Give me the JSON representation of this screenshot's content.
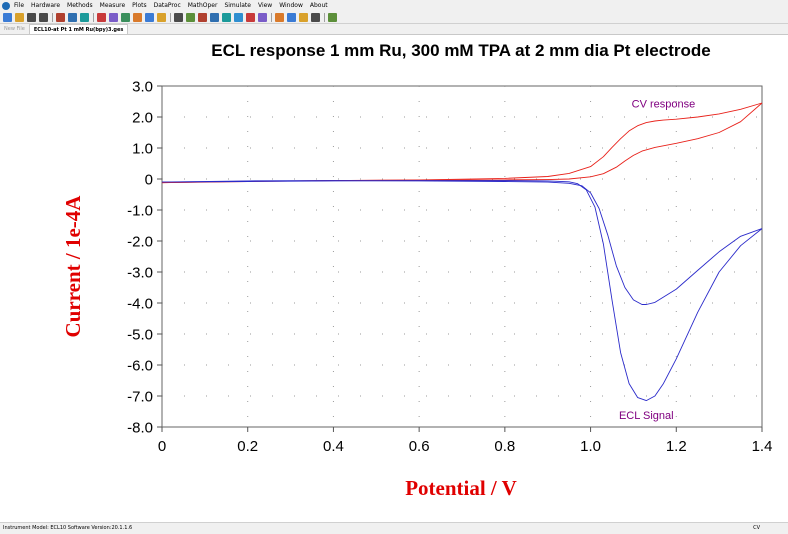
{
  "menu": [
    "File",
    "Hardware",
    "Methods",
    "Measure",
    "Plots",
    "DataProc",
    "MathOper",
    "Simulate",
    "View",
    "Window",
    "About"
  ],
  "toolbar_icons": [
    "new-file-icon",
    "open-folder-icon",
    "save-icon",
    "print-icon",
    "separator",
    "text-icon",
    "report-icon",
    "display-icon",
    "separator",
    "run-icon",
    "pause-icon",
    "stop-icon",
    "reverse-icon",
    "cell-icon",
    "rotate-icon",
    "separator",
    "graph-options-icon",
    "zoom-icon",
    "tools-icon",
    "overlay-icon",
    "add-icon",
    "color-icon",
    "plot-icon",
    "window-icon",
    "separator",
    "smooth-icon",
    "peak-icon",
    "derivative-icon",
    "fit-icon",
    "separator",
    "notebook-icon"
  ],
  "tabs": [
    {
      "label": "New File",
      "active": false
    },
    {
      "label": "ECL10-at Pt 1 mM Ru(bpy)3.ges",
      "active": true
    }
  ],
  "status": {
    "left": "Instrument Model: ECL10  Software Version:20.1.1.6",
    "right": "CV"
  },
  "colors": {
    "cv": "#e8211a",
    "ecl": "#2a2aca",
    "axis_title": "#e00000",
    "annotation": "#800080"
  },
  "chart_data": {
    "type": "line",
    "title": "ECL response 1 mm Ru, 300 mM TPA at 2 mm dia Pt electrode",
    "xlabel": "Potential / V",
    "ylabel": "Current / 1e-4A",
    "xlim": [
      0,
      1.4
    ],
    "ylim": [
      -8.0,
      3.0
    ],
    "xticks": [
      "0",
      "0.2",
      "0.4",
      "0.6",
      "0.8",
      "1.0",
      "1.2",
      "1.4"
    ],
    "yticks": [
      "3.0",
      "2.0",
      "1.0",
      "0",
      "-1.0",
      "-2.0",
      "-3.0",
      "-4.0",
      "-5.0",
      "-6.0",
      "-7.0",
      "-8.0"
    ],
    "grid": "dotted",
    "annotations": [
      {
        "text": "CV response",
        "x": 1.17,
        "y": 2.4
      },
      {
        "text": "ECL Signal",
        "x": 1.13,
        "y": -7.65
      }
    ],
    "series": [
      {
        "key": "cv_forward",
        "color": "#e8211a",
        "x": [
          0,
          0.2,
          0.4,
          0.6,
          0.8,
          0.9,
          0.95,
          1.0,
          1.03,
          1.06,
          1.08,
          1.1,
          1.12,
          1.15,
          1.2,
          1.25,
          1.3,
          1.35,
          1.4
        ],
        "y": [
          -0.12,
          -0.07,
          -0.05,
          -0.04,
          -0.03,
          -0.02,
          0.0,
          0.07,
          0.17,
          0.38,
          0.58,
          0.76,
          0.9,
          1.02,
          1.15,
          1.3,
          1.5,
          1.85,
          2.45
        ]
      },
      {
        "key": "cv_reverse",
        "color": "#e8211a",
        "x": [
          1.4,
          1.35,
          1.3,
          1.25,
          1.2,
          1.17,
          1.15,
          1.13,
          1.11,
          1.09,
          1.07,
          1.05,
          1.03,
          1.0,
          0.95,
          0.9,
          0.8,
          0.6,
          0.4,
          0.2,
          0
        ],
        "y": [
          2.45,
          2.25,
          2.1,
          2.0,
          1.93,
          1.9,
          1.87,
          1.82,
          1.72,
          1.55,
          1.3,
          1.02,
          0.72,
          0.4,
          0.18,
          0.08,
          0.02,
          -0.03,
          -0.05,
          -0.08,
          -0.12
        ]
      },
      {
        "key": "ecl_forward",
        "color": "#2a2aca",
        "x": [
          0,
          0.2,
          0.4,
          0.6,
          0.8,
          0.9,
          0.95,
          0.98,
          1.0,
          1.02,
          1.04,
          1.06,
          1.08,
          1.1,
          1.12,
          1.13,
          1.15,
          1.2,
          1.25,
          1.3,
          1.35,
          1.4
        ],
        "y": [
          -0.1,
          -0.06,
          -0.05,
          -0.06,
          -0.08,
          -0.1,
          -0.14,
          -0.22,
          -0.45,
          -0.95,
          -1.8,
          -2.8,
          -3.5,
          -3.9,
          -4.05,
          -4.05,
          -3.98,
          -3.55,
          -2.95,
          -2.35,
          -1.85,
          -1.6
        ]
      },
      {
        "key": "ecl_reverse",
        "color": "#2a2aca",
        "x": [
          1.4,
          1.35,
          1.3,
          1.25,
          1.2,
          1.17,
          1.15,
          1.13,
          1.11,
          1.09,
          1.07,
          1.05,
          1.03,
          1.01,
          0.99,
          0.97,
          0.95,
          0.9,
          0.8,
          0.6,
          0.4,
          0.2,
          0
        ],
        "y": [
          -1.6,
          -2.15,
          -3.0,
          -4.3,
          -5.8,
          -6.6,
          -7.0,
          -7.15,
          -7.05,
          -6.6,
          -5.6,
          -3.9,
          -2.1,
          -0.9,
          -0.35,
          -0.15,
          -0.09,
          -0.06,
          -0.05,
          -0.05,
          -0.06,
          -0.08,
          -0.1
        ]
      }
    ]
  }
}
